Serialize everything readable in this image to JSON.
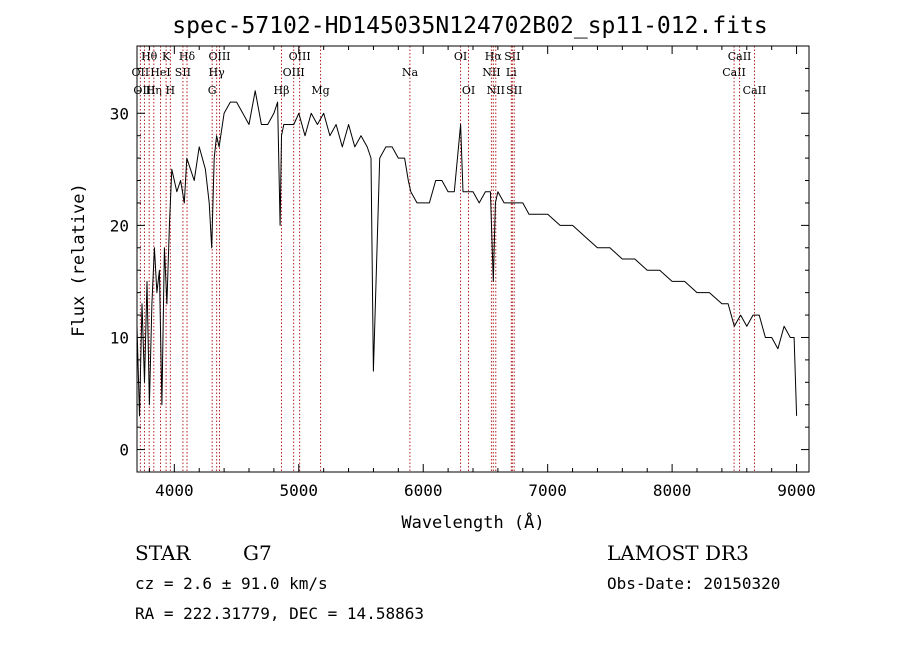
{
  "chart_data": {
    "type": "line",
    "title": "spec-57102-HD145035N124702B02_sp11-012.fits",
    "xlabel": "Wavelength (Å)",
    "ylabel": "Flux (relative)",
    "xlim": [
      3700,
      9100
    ],
    "ylim": [
      -2,
      36
    ],
    "x_ticks": [
      4000,
      5000,
      6000,
      7000,
      8000,
      9000
    ],
    "y_ticks": [
      0,
      10,
      20,
      30
    ],
    "grid": false,
    "series": [
      {
        "x": [
          3700,
          3720,
          3740,
          3760,
          3780,
          3800,
          3820,
          3840,
          3860,
          3880,
          3900,
          3920,
          3940,
          3960,
          3980,
          4000,
          4020,
          4050,
          4080,
          4100,
          4130,
          4160,
          4200,
          4250,
          4280,
          4300,
          4320,
          4340,
          4360,
          4400,
          4450,
          4500,
          4550,
          4600,
          4650,
          4700,
          4750,
          4800,
          4830,
          4850,
          4861,
          4880,
          4920,
          4960,
          5000,
          5050,
          5100,
          5150,
          5200,
          5250,
          5300,
          5350,
          5400,
          5450,
          5500,
          5550,
          5580,
          5600,
          5650,
          5700,
          5750,
          5800,
          5850,
          5880,
          5900,
          5950,
          6000,
          6050,
          6100,
          6150,
          6200,
          6250,
          6300,
          6320,
          6350,
          6400,
          6450,
          6500,
          6540,
          6563,
          6580,
          6600,
          6650,
          6700,
          6750,
          6800,
          6850,
          6900,
          6950,
          7000,
          7100,
          7200,
          7300,
          7400,
          7500,
          7600,
          7700,
          7800,
          7900,
          8000,
          8100,
          8200,
          8300,
          8400,
          8450,
          8500,
          8550,
          8600,
          8650,
          8700,
          8750,
          8800,
          8850,
          8900,
          8950,
          8980,
          9000
        ],
        "values": [
          11,
          3,
          13,
          6,
          15,
          4,
          13,
          18,
          14,
          16,
          4,
          18,
          13,
          20,
          25,
          24,
          23,
          24,
          22,
          26,
          25,
          24,
          27,
          25,
          22,
          18,
          26,
          28,
          27,
          30,
          31,
          31,
          30,
          29,
          32,
          29,
          29,
          30,
          31,
          20,
          28,
          29,
          29,
          29,
          30,
          28,
          30,
          29,
          30,
          28,
          29,
          27,
          29,
          27,
          28,
          27,
          26,
          7,
          26,
          27,
          27,
          26,
          26,
          24,
          23,
          22,
          22,
          22,
          24,
          24,
          23,
          23,
          29,
          23,
          23,
          23,
          22,
          23,
          23,
          15,
          22,
          23,
          22,
          22,
          22,
          22,
          21,
          21,
          21,
          21,
          20,
          20,
          19,
          18,
          18,
          17,
          17,
          16,
          16,
          15,
          15,
          14,
          14,
          13,
          13,
          11,
          12,
          11,
          12,
          12,
          10,
          10,
          9,
          11,
          10,
          10,
          3
        ]
      }
    ],
    "spectral_lines": [
      {
        "name": "Hθ",
        "wavelength": 3798,
        "row": 0
      },
      {
        "name": "OII",
        "wavelength": 3727,
        "row": 1
      },
      {
        "name": "OIII",
        "wavelength": 3760,
        "row": 2
      },
      {
        "name": "Hη",
        "wavelength": 3835,
        "row": 2
      },
      {
        "name": "HeI",
        "wavelength": 3889,
        "row": 1
      },
      {
        "name": "K",
        "wavelength": 3934,
        "row": 0
      },
      {
        "name": "H",
        "wavelength": 3968,
        "row": 2
      },
      {
        "name": "SII",
        "wavelength": 4069,
        "row": 1
      },
      {
        "name": "Hδ",
        "wavelength": 4102,
        "row": 0
      },
      {
        "name": "G",
        "wavelength": 4304,
        "row": 2
      },
      {
        "name": "OIII",
        "wavelength": 4363,
        "row": 0
      },
      {
        "name": "Hγ",
        "wavelength": 4340,
        "row": 1
      },
      {
        "name": "Hβ",
        "wavelength": 4861,
        "row": 2
      },
      {
        "name": "OIII",
        "wavelength": 4959,
        "row": 1
      },
      {
        "name": "OIII",
        "wavelength": 5007,
        "row": 0
      },
      {
        "name": "Mg",
        "wavelength": 5175,
        "row": 2
      },
      {
        "name": "Na",
        "wavelength": 5893,
        "row": 1
      },
      {
        "name": "OI",
        "wavelength": 6300,
        "row": 0
      },
      {
        "name": "OI",
        "wavelength": 6364,
        "row": 2
      },
      {
        "name": "NII",
        "wavelength": 6548,
        "row": 1
      },
      {
        "name": "Hα",
        "wavelength": 6563,
        "row": 0
      },
      {
        "name": "NII",
        "wavelength": 6583,
        "row": 2
      },
      {
        "name": "SII",
        "wavelength": 6716,
        "row": 0
      },
      {
        "name": "Li",
        "wavelength": 6708,
        "row": 1
      },
      {
        "name": "SII",
        "wavelength": 6731,
        "row": 2
      },
      {
        "name": "CaII",
        "wavelength": 8498,
        "row": 1
      },
      {
        "name": "CaII",
        "wavelength": 8542,
        "row": 0
      },
      {
        "name": "CaII",
        "wavelength": 8662,
        "row": 2
      }
    ]
  },
  "info": {
    "class": "STAR",
    "subclass": "G7",
    "survey": "LAMOST DR3",
    "cz": "cz = 2.6 ± 91.0 km/s",
    "obs_date": "Obs-Date: 20150320",
    "coords": "RA = 222.31779, DEC =  14.58863"
  },
  "colors": {
    "spectrum": "#000000",
    "line_marker": "#b22222",
    "axes": "#000000"
  }
}
